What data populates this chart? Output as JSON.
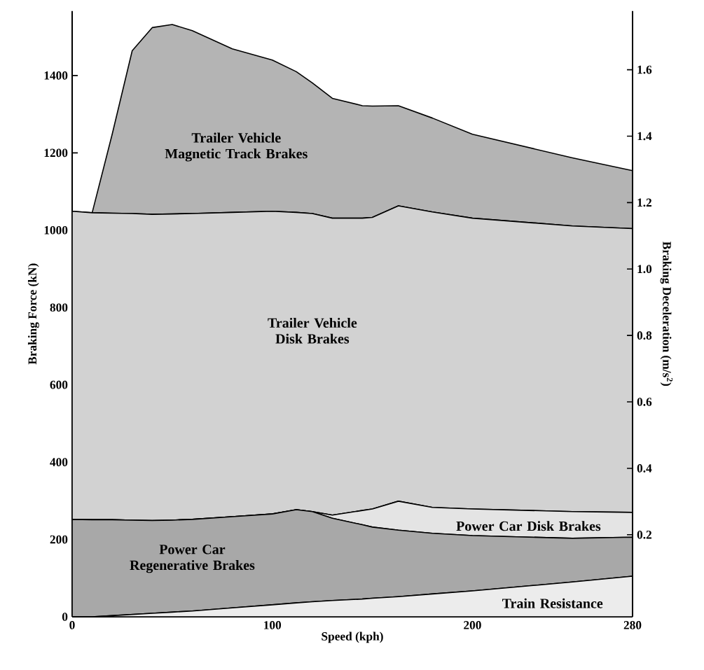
{
  "chart_data": {
    "type": "area",
    "stacked": true,
    "xlabel": "Speed (kph)",
    "ylabel": "Braking Force (kN)",
    "y2label": "Braking Deceleration (m/s$^{2}$)",
    "x": [
      0,
      10,
      20,
      30,
      40,
      50,
      60,
      80,
      100,
      112,
      120,
      130,
      145,
      150,
      163,
      180,
      200,
      250,
      280
    ],
    "series": [
      {
        "name": "Train Resistance",
        "color": "#ececec",
        "values": [
          0,
          0,
          3,
          6,
          9,
          12,
          15,
          23,
          31,
          36,
          39,
          42,
          46,
          48,
          52,
          59,
          67,
          90,
          105
        ]
      },
      {
        "name": "Power Car Regenerative Brakes",
        "color": "#a8a8a8",
        "values": [
          252,
          251,
          248,
          244,
          240,
          238,
          237,
          236,
          235,
          241,
          233,
          213,
          192,
          184,
          172,
          157,
          143,
          113,
          101
        ]
      },
      {
        "name": "Power Car Disk Brakes",
        "color": "#e4e4e4",
        "values": [
          0,
          0,
          0,
          0,
          0,
          0,
          0,
          0,
          0,
          0,
          0,
          8,
          37,
          47,
          75,
          67,
          69,
          69,
          64
        ]
      },
      {
        "name": "Trailer Vehicle Disk Brakes",
        "color": "#d2d2d2",
        "values": [
          797,
          794,
          793,
          793,
          792,
          792,
          791,
          787,
          783,
          769,
          771,
          768,
          756,
          754,
          764,
          764,
          752,
          739,
          734
        ]
      },
      {
        "name": "Trailer Vehicle Magnetic Track Brakes",
        "color": "#b4b4b4",
        "values": [
          0,
          0,
          204,
          421,
          483,
          490,
          473,
          423,
          391,
          364,
          338,
          310,
          291,
          288,
          259,
          243,
          217,
          176,
          150
        ]
      }
    ],
    "xlim": [
      0,
      280
    ],
    "xticks": [
      0,
      100,
      200,
      280
    ],
    "ylim": [
      0,
      1567
    ],
    "yticks": [
      0,
      200,
      400,
      600,
      800,
      1000,
      1200,
      1400
    ],
    "y2lim": [
      -0.047,
      1.777
    ],
    "y2ticks": [
      0.2,
      0.4,
      0.6,
      0.8,
      {
        "value": 1.0,
        "label": "1.0"
      },
      1.2,
      1.4,
      1.6
    ],
    "grid": false
  }
}
